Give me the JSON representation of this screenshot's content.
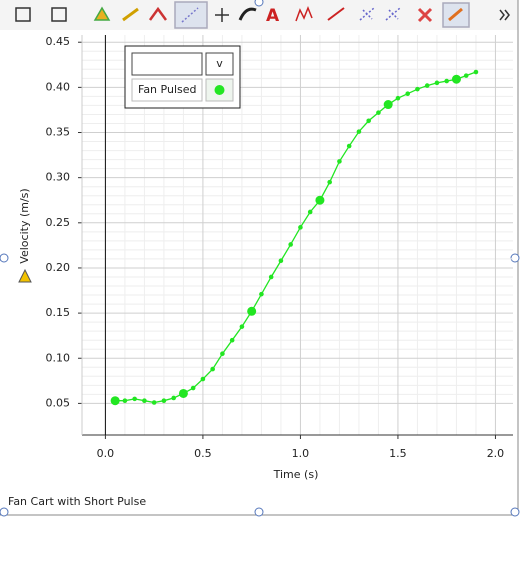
{
  "chart_data": {
    "type": "line",
    "caption": "Fan Cart with Short Pulse",
    "xlabel": "Time (s)",
    "ylabel": "Velocity (m/s)",
    "legend_title": "v",
    "x": [
      0.05,
      0.1,
      0.15,
      0.2,
      0.25,
      0.3,
      0.35,
      0.4,
      0.45,
      0.5,
      0.55,
      0.6,
      0.65,
      0.7,
      0.75,
      0.8,
      0.85,
      0.9,
      0.95,
      1.0,
      1.05,
      1.1,
      1.15,
      1.2,
      1.25,
      1.3,
      1.35,
      1.4,
      1.45,
      1.5,
      1.55,
      1.6,
      1.65,
      1.7,
      1.75,
      1.8,
      1.85,
      1.9
    ],
    "series": [
      {
        "name": "Fan Pulsed",
        "color": "#22e622",
        "values": [
          0.053,
          0.053,
          0.055,
          0.053,
          0.051,
          0.053,
          0.056,
          0.061,
          0.067,
          0.077,
          0.088,
          0.105,
          0.12,
          0.135,
          0.152,
          0.171,
          0.19,
          0.208,
          0.226,
          0.245,
          0.262,
          0.275,
          0.295,
          0.318,
          0.335,
          0.351,
          0.363,
          0.372,
          0.381,
          0.388,
          0.393,
          0.398,
          0.402,
          0.405,
          0.407,
          0.409,
          0.413,
          0.417
        ]
      }
    ],
    "xlim": [
      -0.12,
      2.09
    ],
    "ylim": [
      0.015,
      0.458
    ],
    "xticks": [
      {
        "value": 0,
        "label": "0.0"
      },
      0.5,
      {
        "value": 1,
        "label": "1.0"
      },
      1.5,
      {
        "value": 2,
        "label": "2.0"
      }
    ],
    "yticks": [
      0.05,
      {
        "value": 0.1,
        "label": "0.10"
      },
      0.15,
      {
        "value": 0.2,
        "label": "0.20"
      },
      0.25,
      {
        "value": 0.3,
        "label": "0.30"
      },
      0.35,
      {
        "value": 0.4,
        "label": "0.40"
      },
      0.45
    ],
    "grid": true
  }
}
